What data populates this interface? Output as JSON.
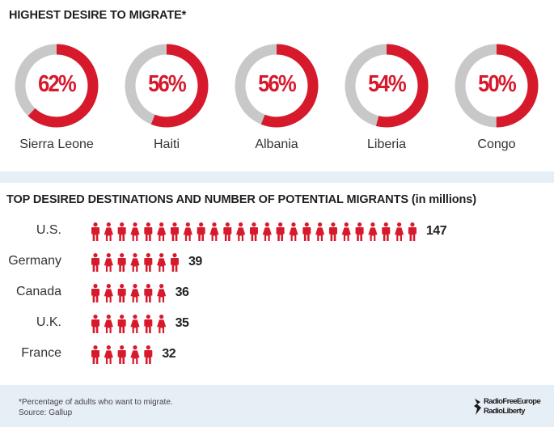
{
  "colors": {
    "accent": "#d7192c",
    "track": "#c8c8c8",
    "background": "#e6eef6"
  },
  "chart_data": [
    {
      "type": "pie",
      "variant": "donut",
      "title": "HIGHEST DESIRE TO MIGRATE*",
      "categories": [
        "Sierra Leone",
        "Haiti",
        "Albania",
        "Liberia",
        "Congo"
      ],
      "values": [
        62,
        56,
        56,
        54,
        50
      ],
      "labels": [
        "62%",
        "56%",
        "56%",
        "54%",
        "50%"
      ]
    },
    {
      "type": "bar",
      "variant": "pictogram",
      "title": "TOP DESIRED DESTINATIONS AND NUMBER OF POTENTIAL MIGRANTS (in millions)",
      "categories": [
        "U.S.",
        "Germany",
        "Canada",
        "U.K.",
        "France"
      ],
      "values": [
        147,
        39,
        36,
        35,
        32
      ],
      "labels": [
        "147",
        "39",
        "36",
        "35",
        "32"
      ]
    }
  ],
  "footer": {
    "footnote": "*Percentage of adults who want to migrate.",
    "source": "Source: Gallup",
    "logo_line1": "RadioFreeEurope",
    "logo_line2": "RadioLiberty"
  }
}
